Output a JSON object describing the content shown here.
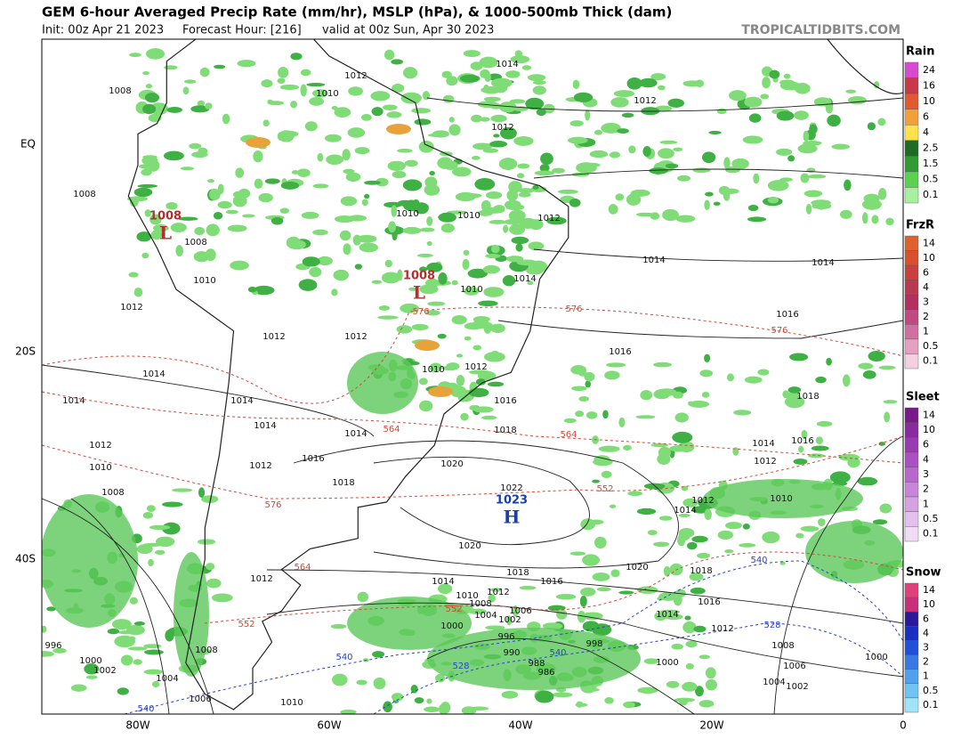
{
  "header": {
    "title": "GEM 6-hour Averaged Precip Rate (mm/hr), MSLP (hPa), & 1000-500mb Thick (dam)",
    "init": "Init: 00z Apr 21 2023",
    "forecast": "Forecast Hour: [216]",
    "valid": "valid at 00z Sun, Apr 30 2023",
    "source": "TROPICALTIDBITS.COM"
  },
  "map": {
    "lat_labels": [
      "EQ",
      "20S",
      "40S"
    ],
    "lon_labels": [
      "80W",
      "60W",
      "40W",
      "20W",
      "0"
    ],
    "centers": [
      {
        "type": "L",
        "pressure": 1008,
        "color": "#b03030"
      },
      {
        "type": "L",
        "pressure": 1008,
        "color": "#b03030"
      },
      {
        "type": "H",
        "pressure": 1023,
        "color": "#1a3fb0"
      }
    ],
    "isobar_labels": [
      1014,
      1012,
      1008,
      1010,
      1012,
      1012,
      1008,
      1010,
      1010,
      1012,
      1008,
      1010,
      1014,
      1014,
      1012,
      1010,
      1014,
      1016,
      1012,
      1012,
      1016,
      1014,
      1010,
      1012,
      1018,
      1014,
      1014,
      1016,
      1014,
      1014,
      1018,
      1012,
      1014,
      1016,
      1010,
      1012,
      1016,
      1020,
      1012,
      1018,
      1022,
      1008,
      1012,
      1010,
      1014,
      1020,
      1018,
      1020,
      1018,
      1012,
      1016,
      1014,
      1012,
      1010,
      1008,
      1016,
      1006,
      1004,
      1002,
      1014,
      1012,
      1000,
      996,
      998,
      990,
      1008,
      1006,
      996,
      1000,
      1002,
      1008,
      1004,
      1000,
      988,
      986,
      1004,
      1002,
      1000,
      1006,
      1010
    ],
    "thickness_labels": [
      {
        "value": 576,
        "color": "#d24a3a"
      },
      {
        "value": 576,
        "color": "#d24a3a"
      },
      {
        "value": 576,
        "color": "#d24a3a"
      },
      {
        "value": 564,
        "color": "#d24a3a"
      },
      {
        "value": 564,
        "color": "#d24a3a"
      },
      {
        "value": 552,
        "color": "#d24a3a"
      },
      {
        "value": 576,
        "color": "#d24a3a"
      },
      {
        "value": 564,
        "color": "#d24a3a"
      },
      {
        "value": 552,
        "color": "#d24a3a"
      },
      {
        "value": 552,
        "color": "#d24a3a"
      },
      {
        "value": 540,
        "color": "#2a44c8"
      },
      {
        "value": 528,
        "color": "#2a44c8"
      },
      {
        "value": 540,
        "color": "#2a44c8"
      },
      {
        "value": 528,
        "color": "#2a44c8"
      },
      {
        "value": 540,
        "color": "#2a44c8"
      },
      {
        "value": 540,
        "color": "#2a44c8"
      }
    ]
  },
  "legend": [
    {
      "title": "Rain",
      "ticks": [
        24,
        16,
        10,
        6,
        4,
        2.5,
        1.5,
        0.5,
        0.1
      ],
      "colors": [
        "#d84ad0",
        "#c83a4a",
        "#e05a2f",
        "#f0a03a",
        "#ffe14a",
        "#1f6a24",
        "#2f9b32",
        "#5bd152",
        "#a6f09e"
      ]
    },
    {
      "title": "FrzR",
      "ticks": [
        14,
        10,
        6,
        4,
        3,
        2,
        1,
        0.5,
        0.1
      ],
      "colors": [
        "#e0602e",
        "#d8502e",
        "#c84040",
        "#b83a50",
        "#b03060",
        "#c04a80",
        "#d070a0",
        "#e4a0c0",
        "#f2d0e0"
      ]
    },
    {
      "title": "Sleet",
      "ticks": [
        14,
        10,
        6,
        4,
        3,
        2,
        1,
        0.5,
        0.1
      ],
      "colors": [
        "#7a1a8a",
        "#8a2aa0",
        "#9a3ab0",
        "#aa50c0",
        "#b868cc",
        "#c886d8",
        "#d6a2e2",
        "#e4c0ec",
        "#f0dcf4"
      ]
    },
    {
      "title": "Snow",
      "ticks": [
        14,
        10,
        6,
        4,
        3,
        2,
        1,
        0.5,
        0.1
      ],
      "colors": [
        "#e0407a",
        "#c8307a",
        "#2a1a9a",
        "#1a30c0",
        "#2050d8",
        "#3a78e4",
        "#50a0ee",
        "#70c4f4",
        "#a0e4fa"
      ]
    }
  ]
}
